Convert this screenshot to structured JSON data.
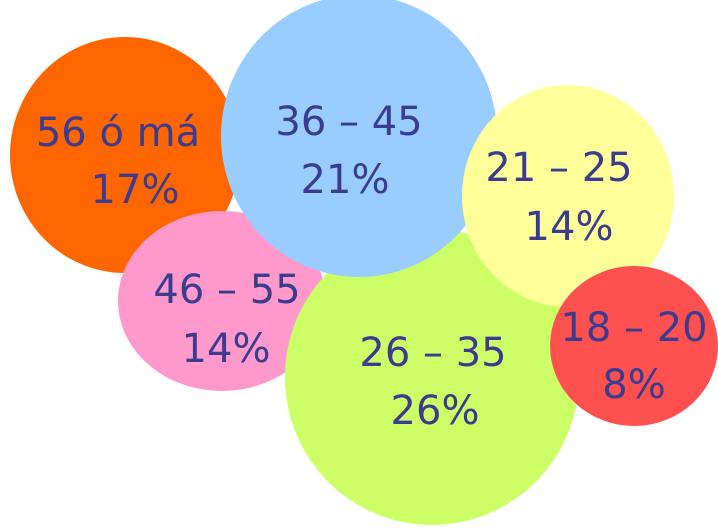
{
  "chart_data": {
    "type": "bubble",
    "unit": "%",
    "bubbles": [
      {
        "label": "56 ó má",
        "value": 17,
        "value_label": "17%",
        "color": "#ff6600"
      },
      {
        "label": "46 – 55",
        "value": 14,
        "value_label": "14%",
        "color": "#ff99cc"
      },
      {
        "label": "26 – 35",
        "value": 26,
        "value_label": "26%",
        "color": "#ccff66"
      },
      {
        "label": "36 – 45",
        "value": 21,
        "value_label": "21%",
        "color": "#99ccff"
      },
      {
        "label": "21 – 25",
        "value": 14,
        "value_label": "14%",
        "color": "#ffff99"
      },
      {
        "label": "18 – 20",
        "value": 8,
        "value_label": "8%",
        "color": "#ff5050"
      }
    ],
    "label_color": "#3b3b8f"
  }
}
